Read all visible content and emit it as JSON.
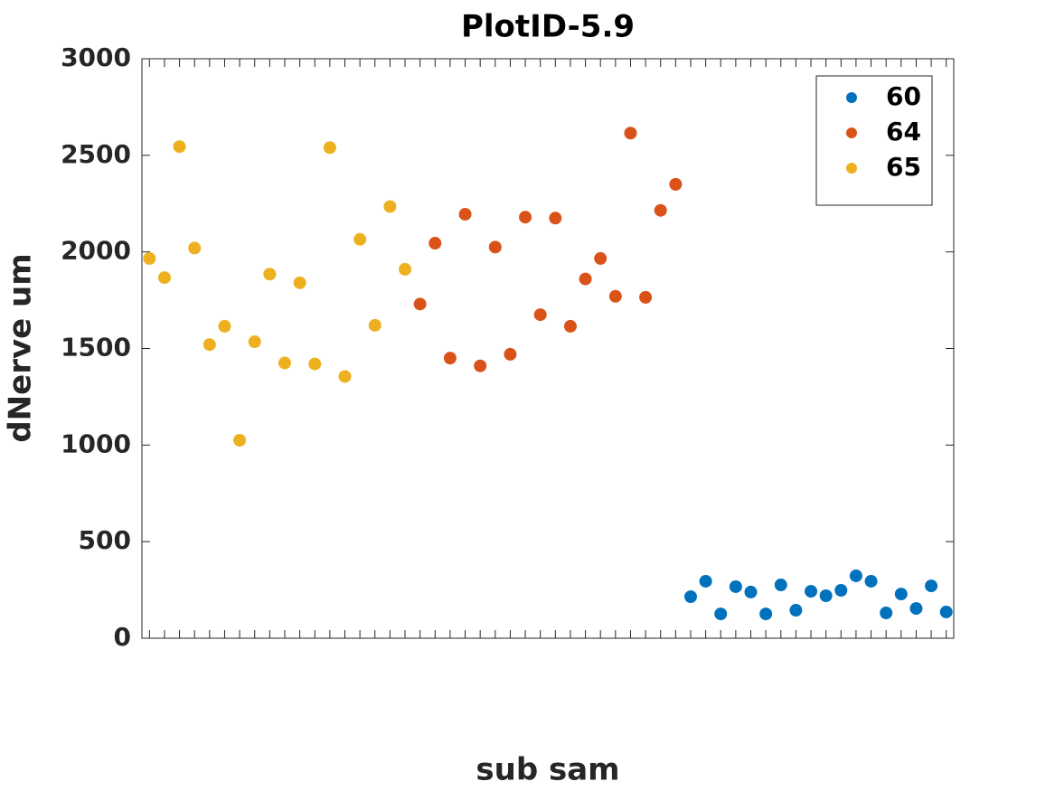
{
  "chart_data": {
    "type": "scatter",
    "title": "PlotID-5.9",
    "x_label": "sub sam",
    "y_label": "dNerve um",
    "categories": [
      null,
      null,
      null,
      null,
      null,
      null,
      null,
      null,
      null,
      null,
      null,
      null,
      null,
      null,
      null,
      null,
      null,
      null,
      null,
      null,
      null,
      null,
      null,
      null,
      null,
      null,
      null,
      null,
      null,
      null,
      null,
      null,
      null,
      null,
      null,
      null,
      null,
      null,
      null,
      null,
      null,
      null,
      null,
      null,
      null,
      null,
      null,
      null,
      null,
      null,
      null,
      null,
      null,
      null
    ],
    "series": [
      {
        "name": "60",
        "color": "#0072BD",
        "values": [
          null,
          null,
          null,
          null,
          null,
          null,
          null,
          null,
          null,
          null,
          null,
          null,
          null,
          null,
          null,
          null,
          null,
          null,
          null,
          null,
          null,
          null,
          null,
          null,
          null,
          null,
          null,
          null,
          null,
          null,
          null,
          null,
          null,
          null,
          null,
          null,
          215,
          295,
          126,
          267,
          239,
          126,
          276,
          145,
          243,
          220,
          248,
          323,
          295,
          131,
          229,
          154,
          271,
          136
        ]
      },
      {
        "name": "64",
        "color": "#D95319",
        "values": [
          null,
          null,
          null,
          null,
          null,
          null,
          null,
          null,
          null,
          null,
          null,
          null,
          null,
          null,
          null,
          null,
          null,
          null,
          1730,
          2045,
          1450,
          2195,
          1410,
          2025,
          1470,
          2180,
          1675,
          2175,
          1615,
          1860,
          1966,
          1770,
          2615,
          1765,
          2215,
          2350,
          null,
          null,
          null,
          null,
          null,
          null,
          null,
          null,
          null,
          null,
          null,
          null,
          null,
          null,
          null,
          null,
          null,
          null
        ]
      },
      {
        "name": "65",
        "color": "#EDB120",
        "values": [
          1966,
          1867,
          2545,
          2020,
          1520,
          1615,
          1025,
          1535,
          1885,
          1425,
          1840,
          1420,
          2540,
          1355,
          2065,
          1620,
          2235,
          1910,
          null,
          null,
          null,
          null,
          null,
          null,
          null,
          null,
          null,
          null,
          null,
          null,
          null,
          null,
          null,
          null,
          null,
          null,
          null,
          null,
          null,
          null,
          null,
          null,
          null,
          null,
          null,
          null,
          null,
          null,
          null,
          null,
          null,
          null,
          null,
          null
        ]
      }
    ],
    "ylim": [
      0,
      3000
    ],
    "yticks": [
      0,
      500,
      1000,
      1500,
      2000,
      2500,
      3000
    ],
    "legend": "northeast",
    "grid": false
  }
}
